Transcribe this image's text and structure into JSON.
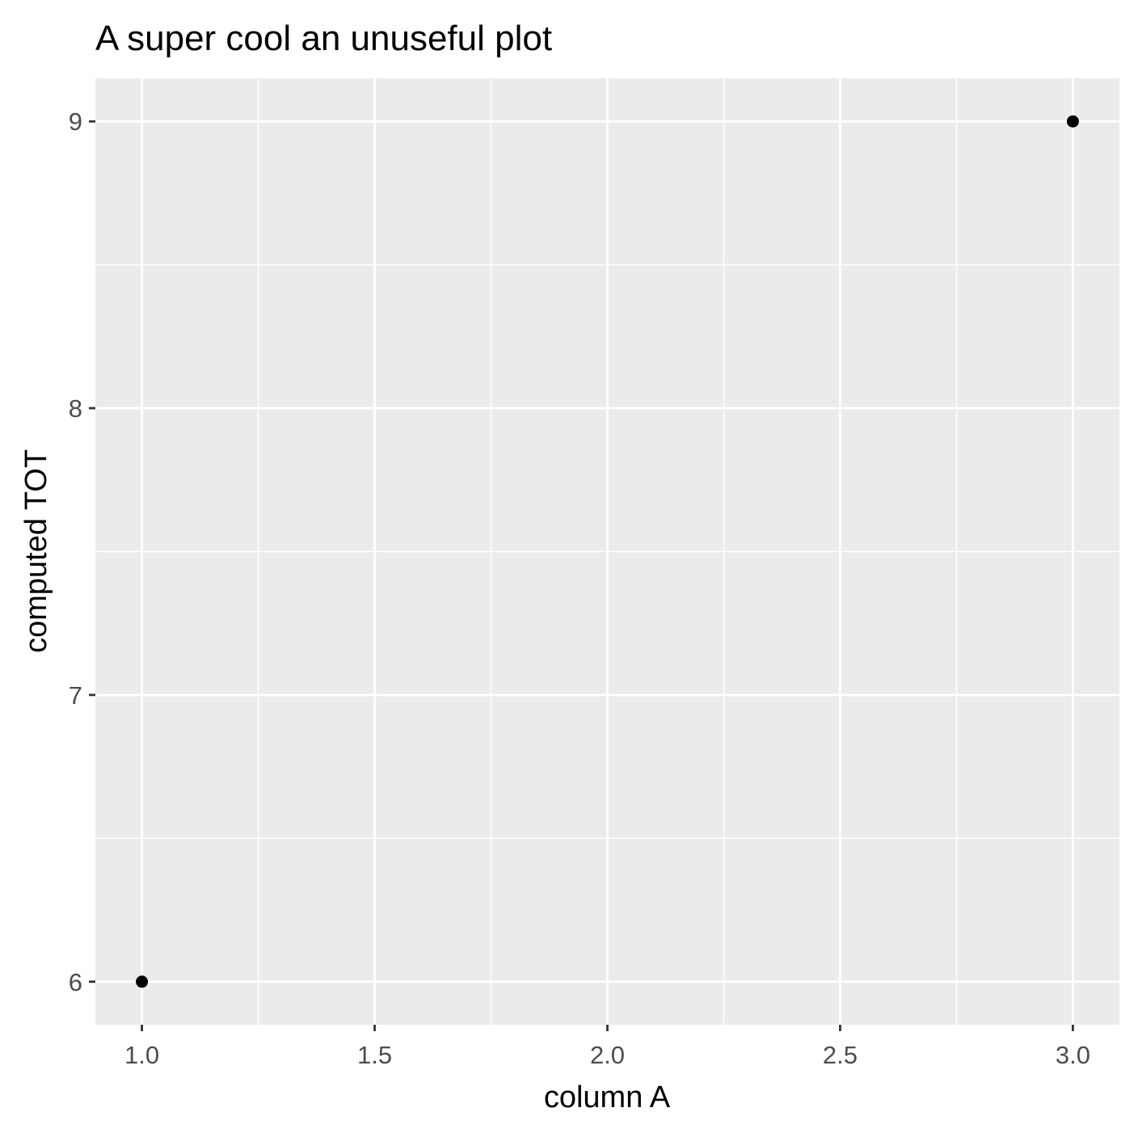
{
  "chart_data": {
    "type": "scatter",
    "title": "A super cool an unuseful plot",
    "xlabel": "column A",
    "ylabel": "computed TOT",
    "points": [
      {
        "x": 1.0,
        "y": 6
      },
      {
        "x": 3.0,
        "y": 9
      }
    ],
    "xlim": [
      0.9,
      3.1
    ],
    "ylim": [
      5.85,
      9.15
    ],
    "x_ticks": [
      1.0,
      1.5,
      2.0,
      2.5,
      3.0
    ],
    "x_tick_labels": [
      "1.0",
      "1.5",
      "2.0",
      "2.5",
      "3.0"
    ],
    "x_minor_ticks": [
      1.25,
      1.75,
      2.25,
      2.75
    ],
    "y_ticks": [
      6,
      7,
      8,
      9
    ],
    "y_tick_labels": [
      "6",
      "7",
      "8",
      "9"
    ],
    "y_minor_ticks": [
      6.5,
      7.5,
      8.5
    ],
    "grid": true,
    "legend": "none",
    "colors": {
      "panel_background": "#ebebeb",
      "grid": "#ffffff",
      "point": "#000000",
      "tick_label": "#4d4d4d",
      "tick_mark": "#333333"
    }
  }
}
